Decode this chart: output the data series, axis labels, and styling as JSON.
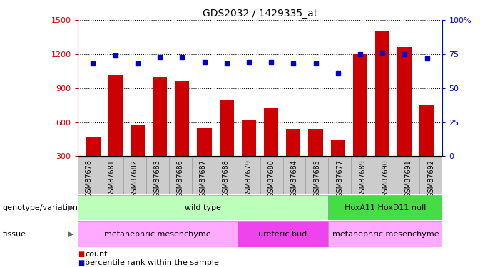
{
  "title": "GDS2032 / 1429335_at",
  "samples": [
    "GSM87678",
    "GSM87681",
    "GSM87682",
    "GSM87683",
    "GSM87686",
    "GSM87687",
    "GSM87688",
    "GSM87679",
    "GSM87680",
    "GSM87684",
    "GSM87685",
    "GSM87677",
    "GSM87689",
    "GSM87690",
    "GSM87691",
    "GSM87692"
  ],
  "counts": [
    470,
    1010,
    570,
    1000,
    960,
    545,
    790,
    620,
    730,
    540,
    540,
    445,
    1200,
    1400,
    1260,
    750
  ],
  "percentile": [
    68,
    74,
    68,
    73,
    73,
    69,
    68,
    69,
    69,
    68,
    68,
    61,
    75,
    76,
    75,
    72
  ],
  "ylim_left": [
    300,
    1500
  ],
  "ylim_right": [
    0,
    100
  ],
  "yticks_left": [
    300,
    600,
    900,
    1200,
    1500
  ],
  "yticks_right": [
    0,
    25,
    50,
    75,
    100
  ],
  "bar_color": "#cc0000",
  "dot_color": "#0000cc",
  "genotype_groups": [
    {
      "label": "wild type",
      "start": 0,
      "end": 11,
      "color": "#bbffbb"
    },
    {
      "label": "HoxA11 HoxD11 null",
      "start": 11,
      "end": 16,
      "color": "#44dd44"
    }
  ],
  "tissue_groups": [
    {
      "label": "metanephric mesenchyme",
      "start": 0,
      "end": 7,
      "color": "#ffaaff"
    },
    {
      "label": "ureteric bud",
      "start": 7,
      "end": 11,
      "color": "#ee44ee"
    },
    {
      "label": "metanephric mesenchyme",
      "start": 11,
      "end": 16,
      "color": "#ffaaff"
    }
  ],
  "left_label_color": "#cc0000",
  "right_label_color": "#0000cc",
  "xtick_bg_color": "#cccccc",
  "plot_bg": "#ffffff",
  "grid_color": "#000000"
}
